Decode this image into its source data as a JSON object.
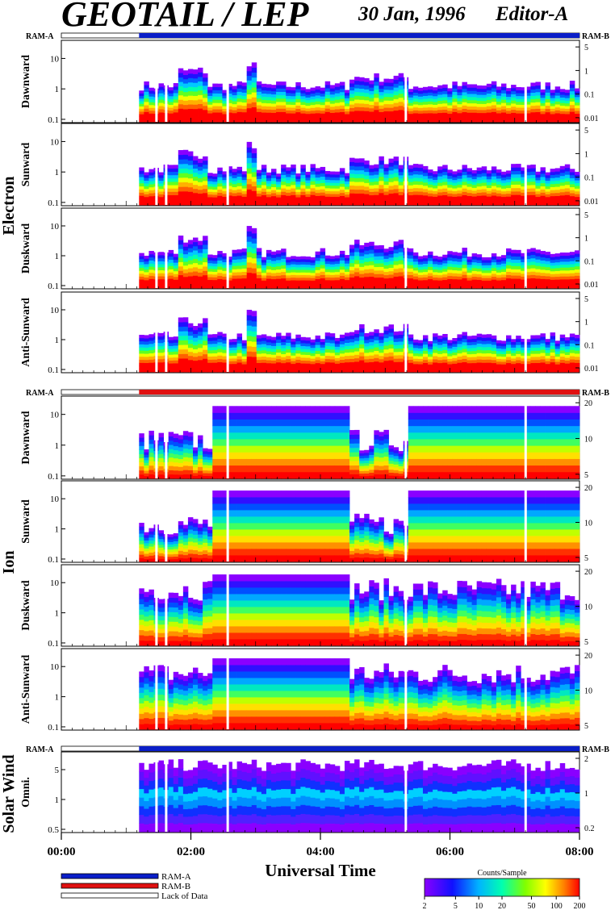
{
  "header": {
    "title": "GEOTAIL / LEP",
    "date": "30 Jan, 1996",
    "editor": "Editor-A"
  },
  "colors": {
    "ram_a": "#0a1ec8",
    "ram_b": "#e01010",
    "lack": "#ffffff"
  },
  "groups": [
    {
      "label": "Electron",
      "ram_left": "RAM-A",
      "ram_right": "RAM-B",
      "ram_state": "ram_a",
      "panels": [
        {
          "label": "Dawnward",
          "left_ticks": [
            "10",
            "1",
            "0.1"
          ],
          "right_ticks": [
            "5",
            "1",
            "0.1",
            "0.01"
          ]
        },
        {
          "label": "Sunward",
          "left_ticks": [
            "10",
            "1",
            "0.1"
          ],
          "right_ticks": [
            "5",
            "1",
            "0.1",
            "0.01"
          ]
        },
        {
          "label": "Duskward",
          "left_ticks": [
            "10",
            "1",
            "0.1"
          ],
          "right_ticks": [
            "5",
            "1",
            "0.1",
            "0.01"
          ]
        },
        {
          "label": "Anti-Sunward",
          "left_ticks": [
            "10",
            "1",
            "0.1"
          ],
          "right_ticks": [
            "5",
            "1",
            "0.1",
            "0.01"
          ]
        }
      ]
    },
    {
      "label": "Ion",
      "ram_left": "RAM-A",
      "ram_right": "RAM-B",
      "ram_state": "ram_b",
      "panels": [
        {
          "label": "Dawnward",
          "left_ticks": [
            "10",
            "1",
            "0.1"
          ],
          "right_ticks": [
            "20",
            "10",
            "5"
          ]
        },
        {
          "label": "Sunward",
          "left_ticks": [
            "10",
            "1",
            "0.1"
          ],
          "right_ticks": [
            "20",
            "10",
            "5"
          ]
        },
        {
          "label": "Duskward",
          "left_ticks": [
            "10",
            "1",
            "0.1"
          ],
          "right_ticks": [
            "20",
            "10",
            "5"
          ]
        },
        {
          "label": "Anti-Sunward",
          "left_ticks": [
            "10",
            "1",
            "0.1"
          ],
          "right_ticks": [
            "20",
            "10",
            "5"
          ]
        }
      ]
    },
    {
      "label": "Solar Wind",
      "ram_left": "RAM-A",
      "ram_right": "RAM-B",
      "ram_state": "ram_a",
      "panels": [
        {
          "label": "Omni.",
          "left_ticks": [
            "5",
            "1",
            "0.5"
          ],
          "right_ticks": [
            "2",
            "1",
            "0.2"
          ]
        }
      ]
    }
  ],
  "x_axis": {
    "label": "Universal Time",
    "ticks": [
      "00:00",
      "02:00",
      "04:00",
      "06:00",
      "08:00"
    ]
  },
  "legend": {
    "items": [
      {
        "label": "RAM-A",
        "color": "#0a1ec8"
      },
      {
        "label": "RAM-B",
        "color": "#e01010"
      },
      {
        "label": "Lack of Data",
        "color": "#ffffff"
      }
    ]
  },
  "colorbar": {
    "title": "Counts/Sample",
    "ticks": [
      "2",
      "5",
      "10",
      "20",
      "50",
      "100",
      "200"
    ]
  },
  "chart_data": {
    "type": "heatmap",
    "title": "GEOTAIL / LEP",
    "xlabel": "Universal Time",
    "x_range_hours": [
      0,
      8
    ],
    "data_start_hours": 1.2,
    "data_gaps_hours": [
      1.45,
      1.6,
      2.55,
      5.3,
      7.15
    ],
    "y_scale": "log",
    "color_scale": {
      "title": "Counts/Sample",
      "min": 2,
      "max": 200,
      "scale": "log"
    }
  }
}
